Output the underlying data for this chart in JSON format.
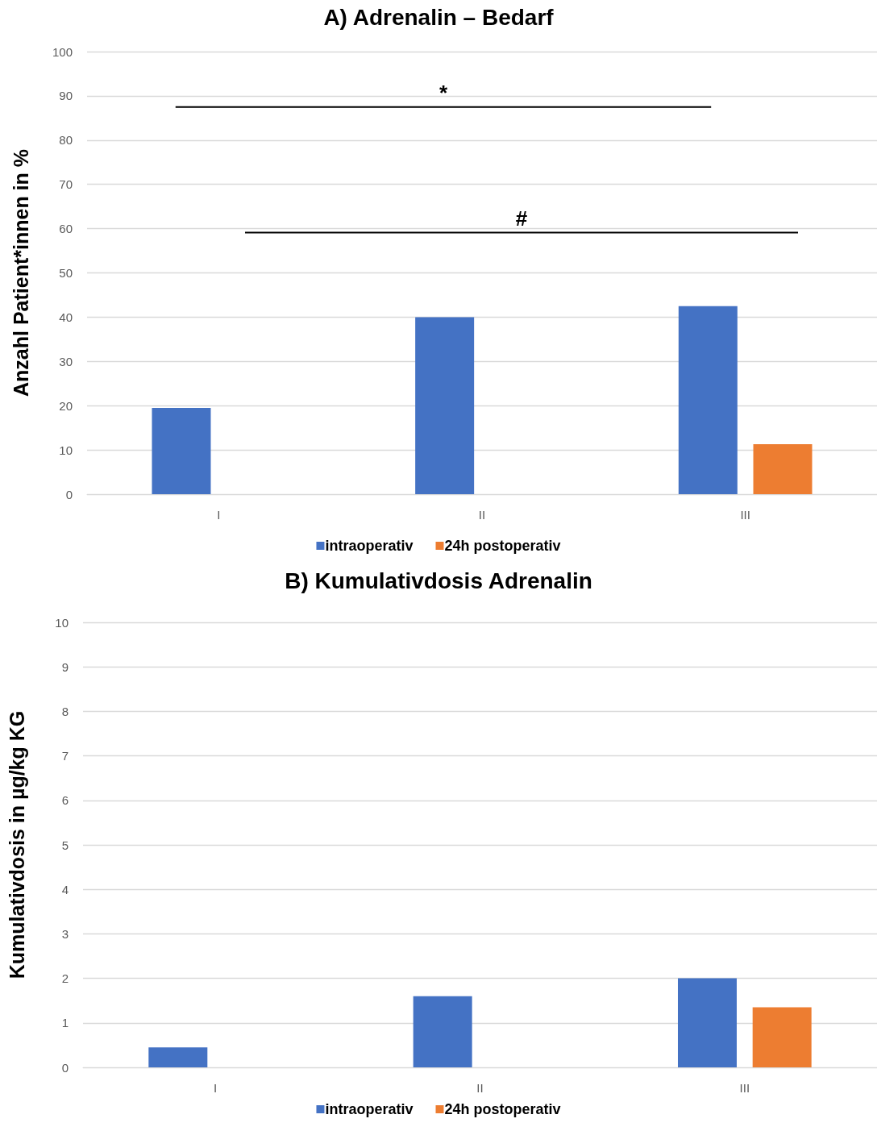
{
  "chart_data": [
    {
      "type": "bar",
      "title": "A) Adrenalin – Bedarf",
      "ylabel": "Anzahl Patient*innen in %",
      "categories": [
        "I",
        "II",
        "III"
      ],
      "series": [
        {
          "name": "intraoperativ",
          "color": "#4472c4",
          "values": [
            19.5,
            40,
            42.5
          ]
        },
        {
          "name": "24h postoperativ",
          "color": "#ed7d31",
          "values": [
            null,
            null,
            11.3
          ]
        }
      ],
      "ylim": [
        0,
        100
      ],
      "yticks": [
        0,
        10,
        20,
        30,
        40,
        50,
        60,
        70,
        80,
        90,
        100
      ],
      "grid": "y",
      "legend": "bottom",
      "annotations": [
        "*",
        "#"
      ]
    },
    {
      "type": "bar",
      "title": "B) Kumulativdosis Adrenalin",
      "ylabel": "Kumulativdosis in µg/kg KG",
      "categories": [
        "I",
        "II",
        "III"
      ],
      "series": [
        {
          "name": "intraoperativ",
          "color": "#4472c4",
          "values": [
            0.45,
            1.6,
            2.0
          ]
        },
        {
          "name": "24h postoperativ",
          "color": "#ed7d31",
          "values": [
            null,
            null,
            1.35
          ]
        }
      ],
      "ylim": [
        0,
        10
      ],
      "yticks": [
        0,
        1,
        2,
        3,
        4,
        5,
        6,
        7,
        8,
        9,
        10
      ],
      "grid": "y",
      "legend": "bottom"
    }
  ]
}
